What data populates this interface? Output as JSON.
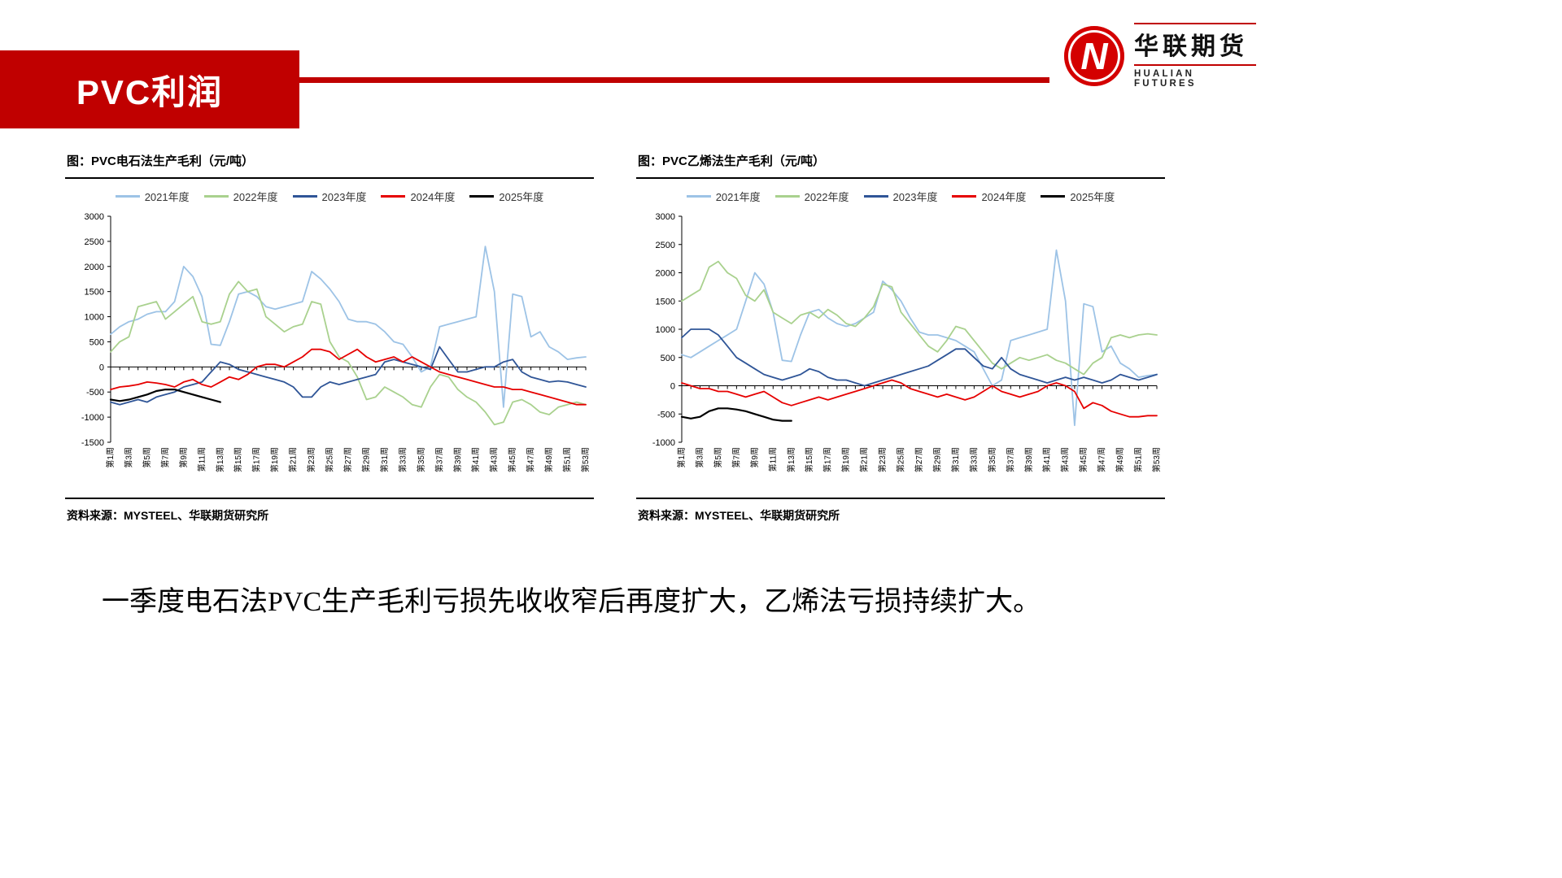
{
  "header": {
    "title": "PVC利润",
    "logo": {
      "monogram": "N",
      "brand_cn": "华联期货",
      "brand_en": "HUALIAN FUTURES"
    }
  },
  "colors": {
    "accent_red": "#C00000",
    "series_2021": "#9DC3E6",
    "series_2022": "#A9D18E",
    "series_2023": "#2F5597",
    "series_2024": "#E60000",
    "series_2025": "#000000"
  },
  "summary_text": "一季度电石法PVC生产毛利亏损先收收窄后再度扩大，乙烯法亏损持续扩大。",
  "chart_data": [
    {
      "type": "line",
      "title": "图：PVC电石法生产毛利（元/吨）",
      "source": "资料来源：MYSTEEL、华联期货研究所",
      "weeks": 53,
      "ylim": [
        -1500,
        3000
      ],
      "y_ticks": [
        3000,
        2500,
        2000,
        1500,
        1000,
        500,
        0,
        -500,
        -1000,
        -1500
      ],
      "grid": false,
      "legend_position": "top",
      "x_tick_labels": [
        "第1周",
        "第3周",
        "第5周",
        "第7周",
        "第9周",
        "第11周",
        "第13周",
        "第15周",
        "第17周",
        "第19周",
        "第21周",
        "第23周",
        "第25周",
        "第27周",
        "第29周",
        "第31周",
        "第33周",
        "第35周",
        "第37周",
        "第39周",
        "第41周",
        "第43周",
        "第45周",
        "第47周",
        "第49周",
        "第51周",
        "第53周"
      ],
      "series": [
        {
          "name": "2021年度",
          "color": "#9DC3E6",
          "values": [
            650,
            800,
            900,
            950,
            1050,
            1100,
            1100,
            1300,
            2000,
            1800,
            1400,
            450,
            430,
            900,
            1450,
            1500,
            1400,
            1200,
            1150,
            1200,
            1250,
            1300,
            1900,
            1750,
            1550,
            1300,
            950,
            900,
            900,
            850,
            700,
            500,
            450,
            200,
            -100,
            0,
            800,
            850,
            900,
            950,
            1000,
            2400,
            1500,
            -800,
            1450,
            1400,
            600,
            700,
            400,
            300,
            150,
            180,
            200
          ]
        },
        {
          "name": "2022年度",
          "color": "#A9D18E",
          "values": [
            300,
            500,
            600,
            1200,
            1250,
            1300,
            950,
            1100,
            1250,
            1400,
            900,
            850,
            900,
            1450,
            1700,
            1500,
            1550,
            1000,
            850,
            700,
            800,
            850,
            1300,
            1250,
            500,
            200,
            100,
            -200,
            -650,
            -600,
            -400,
            -500,
            -600,
            -750,
            -800,
            -400,
            -150,
            -200,
            -450,
            -600,
            -700,
            -900,
            -1150,
            -1100,
            -700,
            -650,
            -750,
            -900,
            -950,
            -800,
            -750,
            -700,
            -750
          ]
        },
        {
          "name": "2023年度",
          "color": "#2F5597",
          "values": [
            -700,
            -750,
            -700,
            -650,
            -700,
            -600,
            -550,
            -500,
            -400,
            -350,
            -300,
            -100,
            100,
            50,
            -50,
            -100,
            -150,
            -200,
            -250,
            -300,
            -400,
            -600,
            -600,
            -400,
            -300,
            -350,
            -300,
            -250,
            -200,
            -150,
            100,
            150,
            100,
            50,
            0,
            -50,
            400,
            150,
            -100,
            -100,
            -50,
            0,
            0,
            100,
            150,
            -100,
            -200,
            -250,
            -300,
            -280,
            -300,
            -350,
            -400
          ]
        },
        {
          "name": "2024年度",
          "color": "#E60000",
          "values": [
            -450,
            -400,
            -380,
            -350,
            -300,
            -320,
            -350,
            -400,
            -300,
            -250,
            -350,
            -400,
            -300,
            -200,
            -250,
            -150,
            0,
            50,
            50,
            0,
            100,
            200,
            350,
            350,
            300,
            150,
            250,
            350,
            200,
            100,
            150,
            200,
            100,
            200,
            100,
            0,
            -100,
            -150,
            -200,
            -250,
            -300,
            -350,
            -400,
            -400,
            -450,
            -450,
            -500,
            -550,
            -600,
            -650,
            -700,
            -750,
            -750
          ]
        },
        {
          "name": "2025年度",
          "color": "#000000",
          "values": [
            -650,
            -680,
            -650,
            -600,
            -550,
            -480,
            -450,
            -450,
            -500,
            -550,
            -600,
            -650,
            -700
          ]
        }
      ]
    },
    {
      "type": "line",
      "title": "图：PVC乙烯法生产毛利（元/吨）",
      "source": "资料来源：MYSTEEL、华联期货研究所",
      "weeks": 53,
      "ylim": [
        -1000,
        3000
      ],
      "y_ticks": [
        3000,
        2500,
        2000,
        1500,
        1000,
        500,
        0,
        -500,
        -1000
      ],
      "grid": false,
      "legend_position": "top",
      "x_tick_labels": [
        "第1周",
        "第3周",
        "第5周",
        "第7周",
        "第9周",
        "第11周",
        "第13周",
        "第15周",
        "第17周",
        "第19周",
        "第21周",
        "第23周",
        "第25周",
        "第27周",
        "第29周",
        "第31周",
        "第33周",
        "第35周",
        "第37周",
        "第39周",
        "第41周",
        "第43周",
        "第45周",
        "第47周",
        "第49周",
        "第51周",
        "第53周"
      ],
      "series": [
        {
          "name": "2021年度",
          "color": "#9DC3E6",
          "values": [
            550,
            500,
            600,
            700,
            800,
            900,
            1000,
            1500,
            2000,
            1800,
            1300,
            450,
            430,
            900,
            1300,
            1350,
            1200,
            1100,
            1050,
            1100,
            1200,
            1300,
            1850,
            1700,
            1500,
            1200,
            950,
            900,
            900,
            850,
            800,
            700,
            600,
            300,
            0,
            100,
            800,
            850,
            900,
            950,
            1000,
            2400,
            1500,
            -700,
            1450,
            1400,
            600,
            700,
            400,
            300,
            150,
            180,
            200
          ]
        },
        {
          "name": "2022年度",
          "color": "#A9D18E",
          "values": [
            1500,
            1600,
            1700,
            2100,
            2200,
            2000,
            1900,
            1600,
            1500,
            1700,
            1300,
            1200,
            1100,
            1250,
            1300,
            1200,
            1350,
            1250,
            1100,
            1050,
            1200,
            1400,
            1800,
            1750,
            1300,
            1100,
            900,
            700,
            600,
            800,
            1050,
            1000,
            800,
            600,
            400,
            300,
            400,
            500,
            450,
            500,
            550,
            450,
            400,
            300,
            200,
            400,
            500,
            850,
            900,
            850,
            900,
            920,
            900
          ]
        },
        {
          "name": "2023年度",
          "color": "#2F5597",
          "values": [
            850,
            1000,
            1000,
            1000,
            900,
            700,
            500,
            400,
            300,
            200,
            150,
            100,
            150,
            200,
            300,
            250,
            150,
            100,
            100,
            50,
            0,
            50,
            100,
            150,
            200,
            250,
            300,
            350,
            450,
            550,
            650,
            650,
            500,
            350,
            300,
            500,
            300,
            200,
            150,
            100,
            50,
            100,
            150,
            100,
            150,
            100,
            50,
            100,
            200,
            150,
            100,
            150,
            200
          ]
        },
        {
          "name": "2024年度",
          "color": "#E60000",
          "values": [
            50,
            0,
            -50,
            -50,
            -100,
            -100,
            -150,
            -200,
            -150,
            -100,
            -200,
            -300,
            -350,
            -300,
            -250,
            -200,
            -250,
            -200,
            -150,
            -100,
            -50,
            0,
            50,
            100,
            50,
            -50,
            -100,
            -150,
            -200,
            -150,
            -200,
            -250,
            -200,
            -100,
            0,
            -100,
            -150,
            -200,
            -150,
            -100,
            0,
            50,
            0,
            -100,
            -400,
            -300,
            -350,
            -450,
            -500,
            -550,
            -550,
            -530,
            -530
          ]
        },
        {
          "name": "2025年度",
          "color": "#000000",
          "values": [
            -550,
            -580,
            -550,
            -450,
            -400,
            -400,
            -420,
            -450,
            -500,
            -550,
            -600,
            -620,
            -620
          ]
        }
      ]
    }
  ]
}
